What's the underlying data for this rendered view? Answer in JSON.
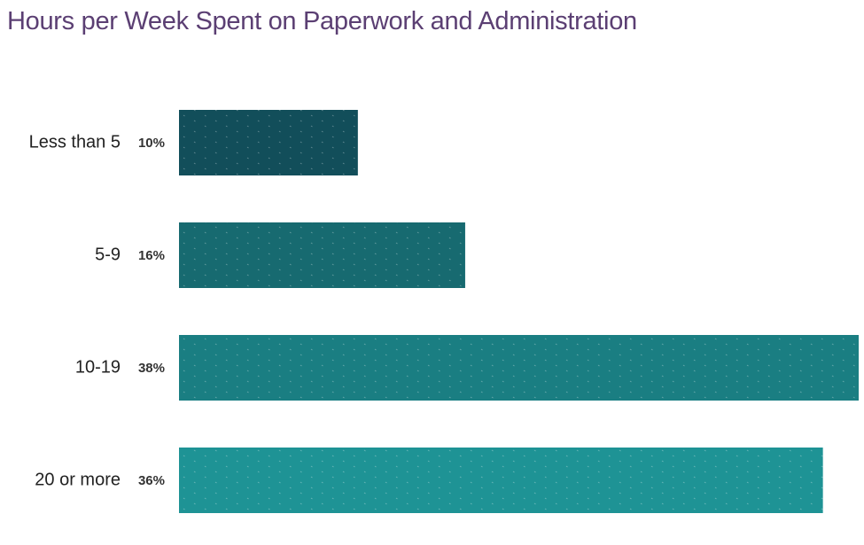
{
  "chart_data": {
    "type": "bar",
    "orientation": "horizontal",
    "title": "Hours per Week Spent on Paperwork and Administration",
    "xlabel": "",
    "ylabel": "",
    "categories": [
      "Less than 5",
      "5-9",
      "10-19",
      "20 or more"
    ],
    "values": [
      10,
      16,
      38,
      36
    ],
    "value_labels": [
      "10%",
      "16%",
      "38%",
      "36%"
    ],
    "unit": "%",
    "xlim": [
      0,
      38
    ],
    "grid": false,
    "legend": "none",
    "colors": [
      "#124e5a",
      "#176a70",
      "#1a7e82",
      "#1e9395"
    ]
  }
}
